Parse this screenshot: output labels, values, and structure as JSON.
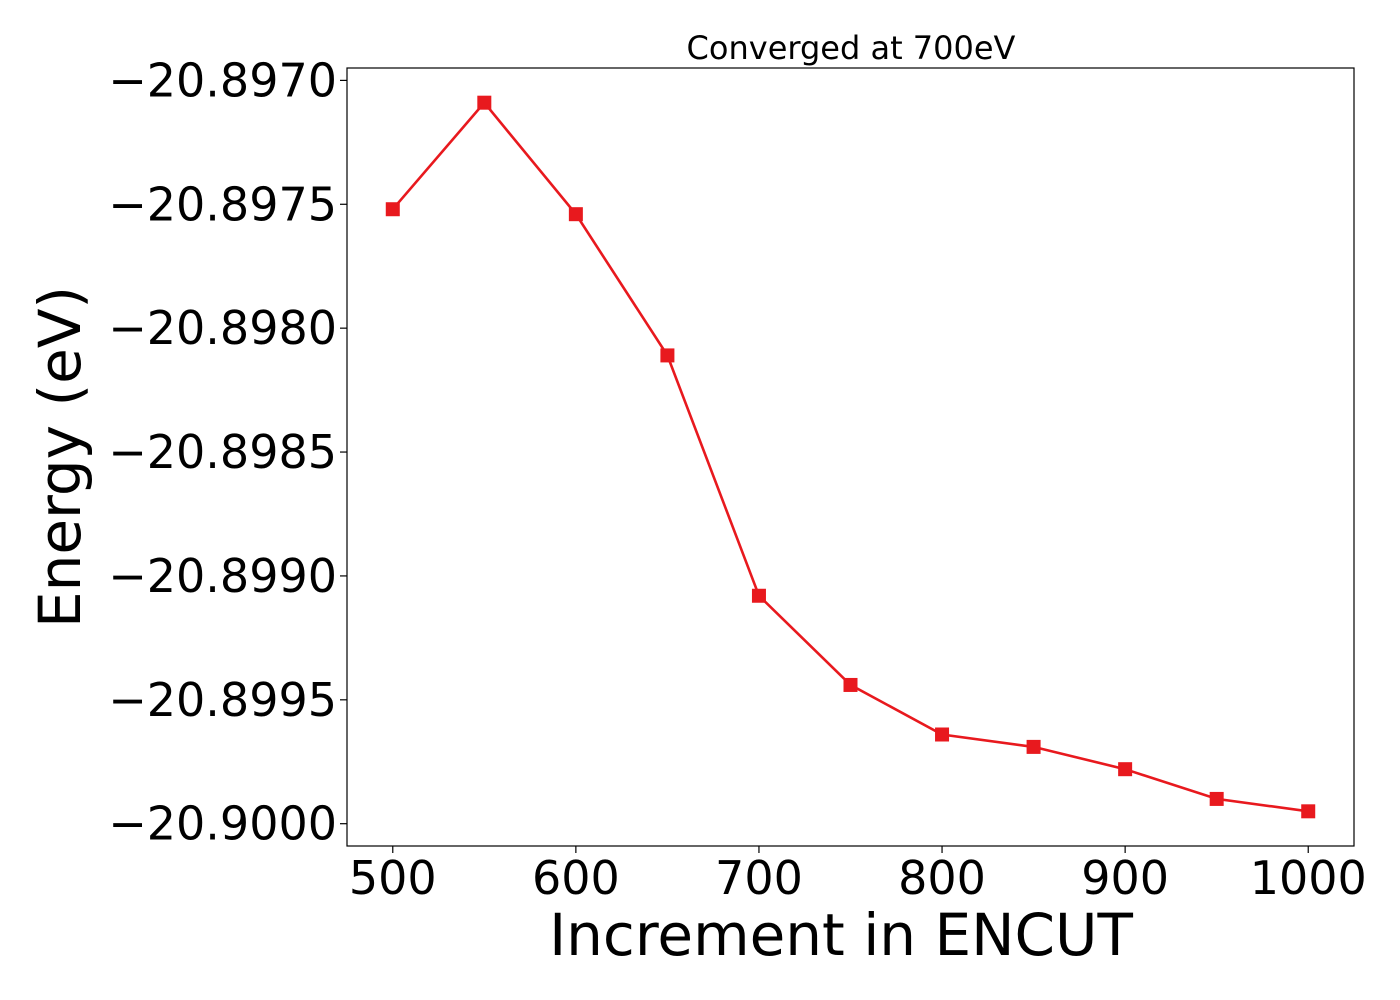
{
  "chart_data": {
    "type": "line",
    "title": "Converged at 700eV",
    "xlabel": "Increment in ENCUT",
    "ylabel": "Energy (eV)",
    "x": [
      500,
      550,
      600,
      650,
      700,
      750,
      800,
      850,
      900,
      950,
      1000
    ],
    "series": [
      {
        "values": [
          -20.89752,
          -20.89709,
          -20.89754,
          -20.89811,
          -20.89908,
          -20.89944,
          -20.89964,
          -20.89969,
          -20.89978,
          -20.8999,
          -20.89995
        ],
        "color": "#e8191e",
        "marker": "square"
      }
    ],
    "xticks": [
      500,
      600,
      700,
      800,
      900,
      1000
    ],
    "xtick_labels": [
      "500",
      "600",
      "700",
      "800",
      "900",
      "1000"
    ],
    "yticks": [
      -20.897,
      -20.8975,
      -20.898,
      -20.8985,
      -20.899,
      -20.8995,
      -20.9
    ],
    "ytick_labels": [
      "−20.8970",
      "−20.8975",
      "−20.8980",
      "−20.8985",
      "−20.8990",
      "−20.8995",
      "−20.9000"
    ],
    "xlim": [
      475,
      1025
    ],
    "ylim": [
      -20.90009,
      -20.89695
    ],
    "grid": false,
    "legend": "none"
  }
}
